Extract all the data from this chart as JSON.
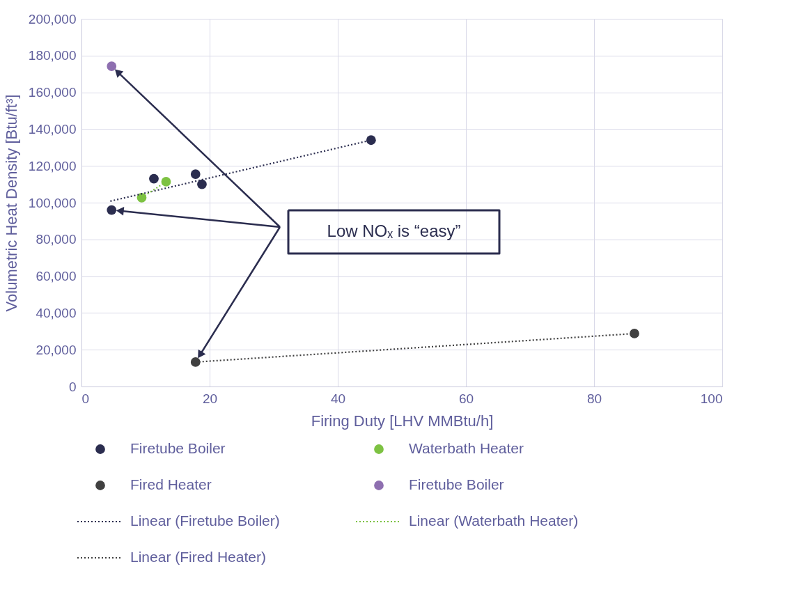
{
  "chart_data": {
    "type": "scatter",
    "xlabel": "Firing Duty [LHV MMBtu/h]",
    "ylabel": "Volumetric Heat Density [Btu/ft³]",
    "xlim": [
      0,
      100
    ],
    "xticks": [
      0,
      20,
      40,
      60,
      80,
      100
    ],
    "ylim": [
      0,
      200000
    ],
    "yticks": [
      0,
      {
        "value": 20000,
        "label": "20,000"
      },
      {
        "value": 40000,
        "label": "40,000"
      },
      {
        "value": 60000,
        "label": "60,000"
      },
      {
        "value": 80000,
        "label": "80,000"
      },
      {
        "value": 100000,
        "label": "100,000"
      },
      {
        "value": 120000,
        "label": "120,000"
      },
      {
        "value": 140000,
        "label": "140,000"
      },
      {
        "value": 160000,
        "label": "160,000"
      },
      {
        "value": 180000,
        "label": "180,000"
      },
      {
        "value": 200000,
        "label": "200,000"
      }
    ],
    "grid": true,
    "legend": "bottom",
    "marker": "circle",
    "series": [
      {
        "name": "Firetube Boiler",
        "color": "#2b2d4f",
        "x": [
          4.7,
          11.3,
          17.8,
          18.8,
          45.2
        ],
        "values": [
          96000,
          113000,
          115500,
          110000,
          134000
        ]
      },
      {
        "name": "Waterbath Heater",
        "color": "#7dc242",
        "x": [
          9.4,
          13.2
        ],
        "values": [
          102700,
          111400
        ]
      },
      {
        "name": "Fired Heater",
        "color": "#404040",
        "x": [
          17.8,
          86.3
        ],
        "values": [
          13300,
          28800
        ]
      },
      {
        "name": "Firetube Boiler",
        "color": "#8e6fb0",
        "x": [
          4.7
        ],
        "values": [
          174200
        ]
      },
      {
        "name": "Linear (Firetube Boiler)",
        "type": "line",
        "marker": "none",
        "line_style": "dotted",
        "color": "#2b2d4f",
        "x": [
          4.5,
          45.2
        ],
        "values": [
          100800,
          134000
        ]
      },
      {
        "name": "Linear (Waterbath Heater)",
        "type": "line",
        "marker": "none",
        "line_style": "dotted",
        "color": "#7dc242",
        "x": [
          9.4,
          13.2
        ],
        "values": [
          102700,
          111400
        ]
      },
      {
        "name": "Linear (Fired Heater)",
        "type": "line",
        "marker": "none",
        "line_style": "dotted",
        "color": "#404040",
        "x": [
          17.8,
          86.3
        ],
        "values": [
          13300,
          28800
        ]
      }
    ],
    "annotations": [
      "Low NOₓ is “easy”"
    ]
  }
}
